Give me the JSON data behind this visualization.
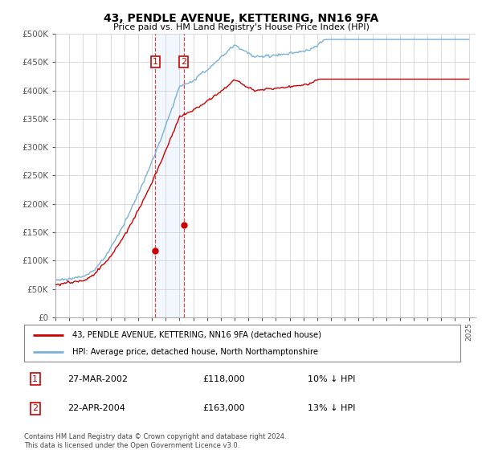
{
  "title": "43, PENDLE AVENUE, KETTERING, NN16 9FA",
  "subtitle": "Price paid vs. HM Land Registry's House Price Index (HPI)",
  "ylabel_ticks": [
    "£0",
    "£50K",
    "£100K",
    "£150K",
    "£200K",
    "£250K",
    "£300K",
    "£350K",
    "£400K",
    "£450K",
    "£500K"
  ],
  "ylim": [
    0,
    500000
  ],
  "xlim_start": 1995.0,
  "xlim_end": 2025.5,
  "sale1_date": 2002.23,
  "sale1_price": 118000,
  "sale1_label": "1",
  "sale1_text": "27-MAR-2002",
  "sale1_amount": "£118,000",
  "sale1_hpi": "10% ↓ HPI",
  "sale2_date": 2004.31,
  "sale2_price": 163000,
  "sale2_label": "2",
  "sale2_text": "22-APR-2004",
  "sale2_amount": "£163,000",
  "sale2_hpi": "13% ↓ HPI",
  "legend_line1": "43, PENDLE AVENUE, KETTERING, NN16 9FA (detached house)",
  "legend_line2": "HPI: Average price, detached house, North Northamptonshire",
  "footer": "Contains HM Land Registry data © Crown copyright and database right 2024.\nThis data is licensed under the Open Government Licence v3.0.",
  "hpi_color": "#7ab0d8",
  "sale_color": "#cc0000",
  "shade_color": "#d8eaf8",
  "grid_color": "#cccccc",
  "background_color": "#ffffff"
}
